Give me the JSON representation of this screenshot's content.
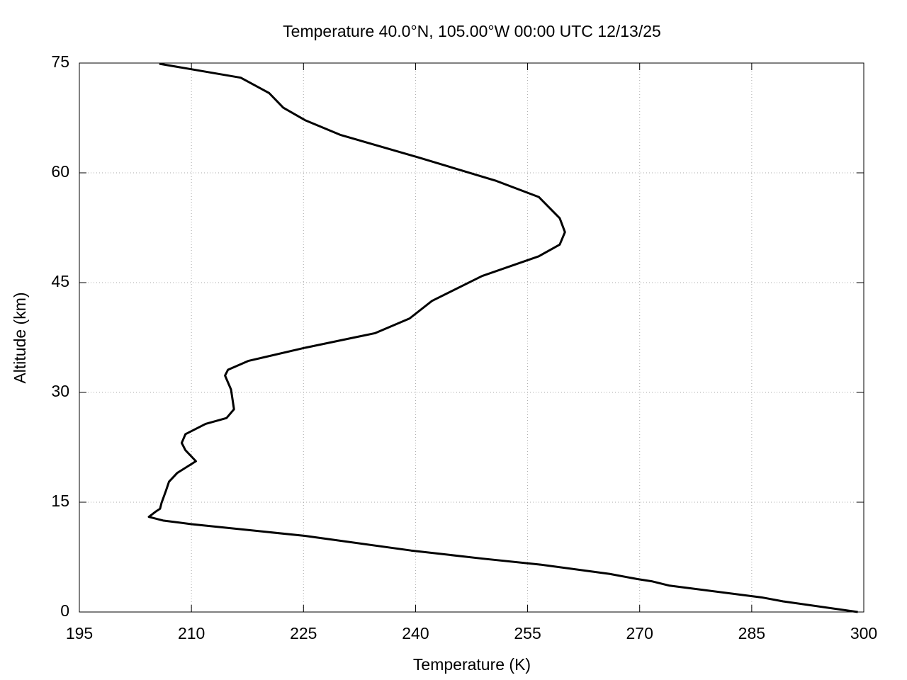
{
  "chart_data": {
    "type": "line",
    "title": "Temperature 40.0°N, 105.00°W 00:00 UTC 12/13/25",
    "x_label": "Temperature (K)",
    "y_label": "Altitude (km)",
    "x": [
      299.2,
      289.2,
      286.3,
      274.0,
      271.6,
      269.7,
      266.0,
      256.5,
      248.9,
      239.4,
      225.2,
      210.0,
      206.2,
      204.3,
      205.2,
      205.8,
      206.0,
      206.6,
      207.0,
      208.1,
      210.6,
      209.2,
      208.7,
      209.2,
      211.9,
      214.7,
      215.7,
      215.3,
      214.5,
      214.9,
      217.6,
      225.2,
      234.6,
      239.2,
      242.2,
      248.9,
      256.5,
      259.3,
      260.0,
      259.3,
      256.5,
      250.8,
      240.4,
      229.9,
      225.2,
      222.3,
      220.4,
      216.6,
      205.7
    ],
    "values": [
      0,
      1.45,
      2.0,
      3.6,
      4.2,
      4.5,
      5.2,
      6.5,
      7.3,
      8.4,
      10.4,
      12.0,
      12.5,
      13.0,
      13.7,
      14.1,
      14.9,
      16.6,
      17.8,
      19.0,
      20.6,
      22.1,
      23.1,
      24.3,
      25.7,
      26.5,
      27.7,
      30.4,
      32.3,
      33.1,
      34.3,
      36.1,
      38.1,
      40.1,
      42.5,
      45.9,
      48.6,
      50.2,
      51.9,
      53.8,
      56.7,
      58.9,
      62.1,
      65.2,
      67.2,
      68.9,
      70.9,
      73.0,
      74.9
    ],
    "color": "#000000",
    "xlim": [
      195,
      300
    ],
    "xticks": [
      195,
      210,
      225,
      240,
      255,
      270,
      285,
      300
    ],
    "ylim": [
      0,
      75
    ],
    "yticks": [
      0,
      15,
      30,
      45,
      60,
      75
    ],
    "grid": true
  }
}
